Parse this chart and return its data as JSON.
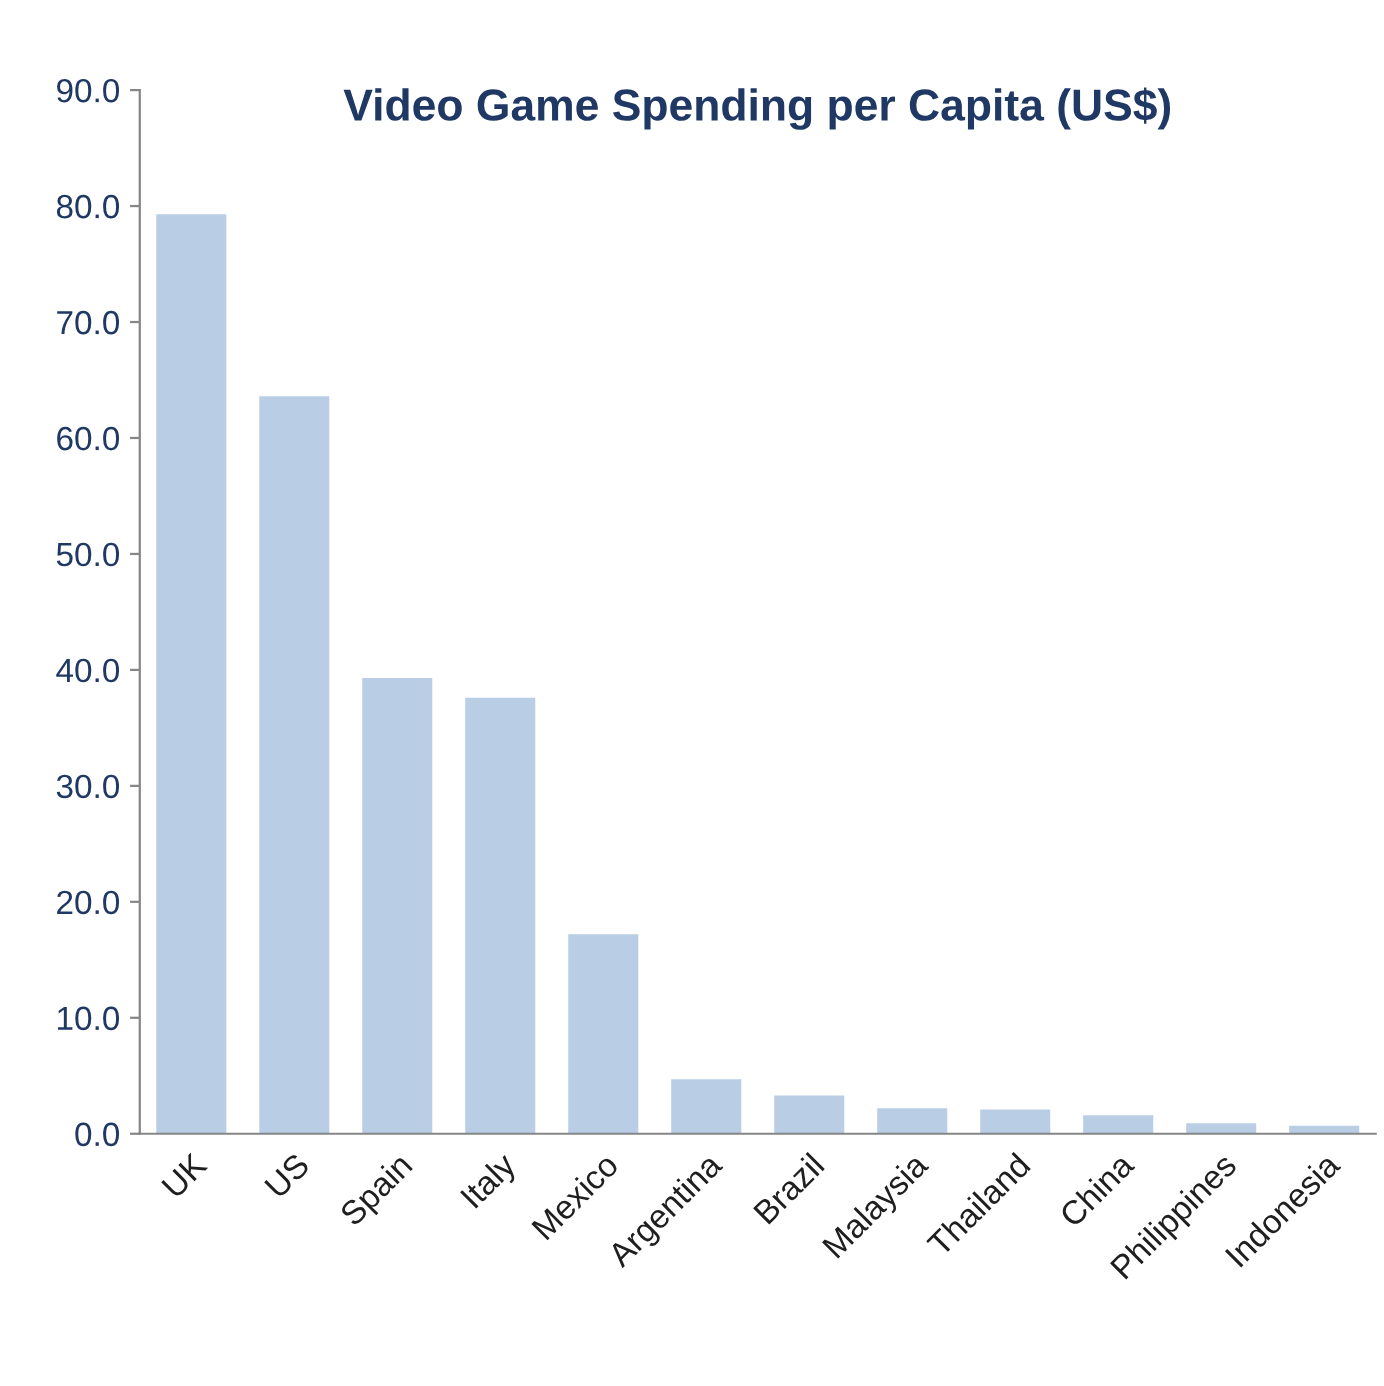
{
  "chart_data": {
    "type": "bar",
    "title": "Video Game Spending per Capita (US$)",
    "categories": [
      "UK",
      "US",
      "Spain",
      "Italy",
      "Mexico",
      "Argentina",
      "Brazil",
      "Malaysia",
      "Thailand",
      "China",
      "Philippines",
      "Indonesia"
    ],
    "values": [
      79.3,
      63.6,
      39.3,
      37.6,
      17.2,
      4.7,
      3.3,
      2.2,
      2.1,
      1.6,
      0.9,
      0.7
    ],
    "color": "#b9cde5",
    "ylim": [
      0,
      90
    ],
    "yticks": [
      {
        "value": 0,
        "label": "0.0"
      },
      {
        "value": 10,
        "label": "10.0"
      },
      {
        "value": 20,
        "label": "20.0"
      },
      {
        "value": 30,
        "label": "30.0"
      },
      {
        "value": 40,
        "label": "40.0"
      },
      {
        "value": 50,
        "label": "50.0"
      },
      {
        "value": 60,
        "label": "60.0"
      },
      {
        "value": 70,
        "label": "70.0"
      },
      {
        "value": 80,
        "label": "80.0"
      },
      {
        "value": 90,
        "label": "90.0"
      }
    ],
    "grid": false,
    "legend": false
  }
}
